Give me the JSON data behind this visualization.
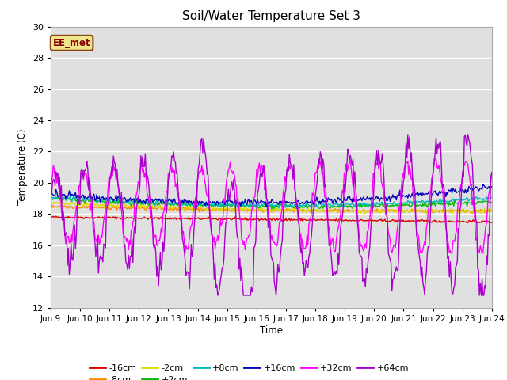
{
  "title": "Soil/Water Temperature Set 3",
  "ylabel": "Temperature (C)",
  "xlabel": "Time",
  "ylim": [
    12,
    30
  ],
  "xlim": [
    0,
    15
  ],
  "xtick_labels": [
    "Jun 9",
    "Jun 10",
    "Jun 11",
    "Jun 12",
    "Jun 13",
    "Jun 14",
    "Jun 15",
    "Jun 16",
    "Jun 17",
    "Jun 18",
    "Jun 19",
    "Jun 20",
    "Jun 21",
    "Jun 22",
    "Jun 23",
    "Jun 24"
  ],
  "annotation_text": "EE_met",
  "annotation_color": "#8B0000",
  "annotation_bg": "#f0e68c",
  "series_colors": {
    "-16cm": "#dd0000",
    "-8cm": "#ff8800",
    "-2cm": "#dddd00",
    "+2cm": "#00bb00",
    "+8cm": "#00bbbb",
    "+16cm": "#0000bb",
    "+32cm": "#ff00ff",
    "+64cm": "#aa00cc"
  },
  "bg_color": "#e0e0e0",
  "grid_color": "#ffffff",
  "spine_color": "#aaaaaa"
}
